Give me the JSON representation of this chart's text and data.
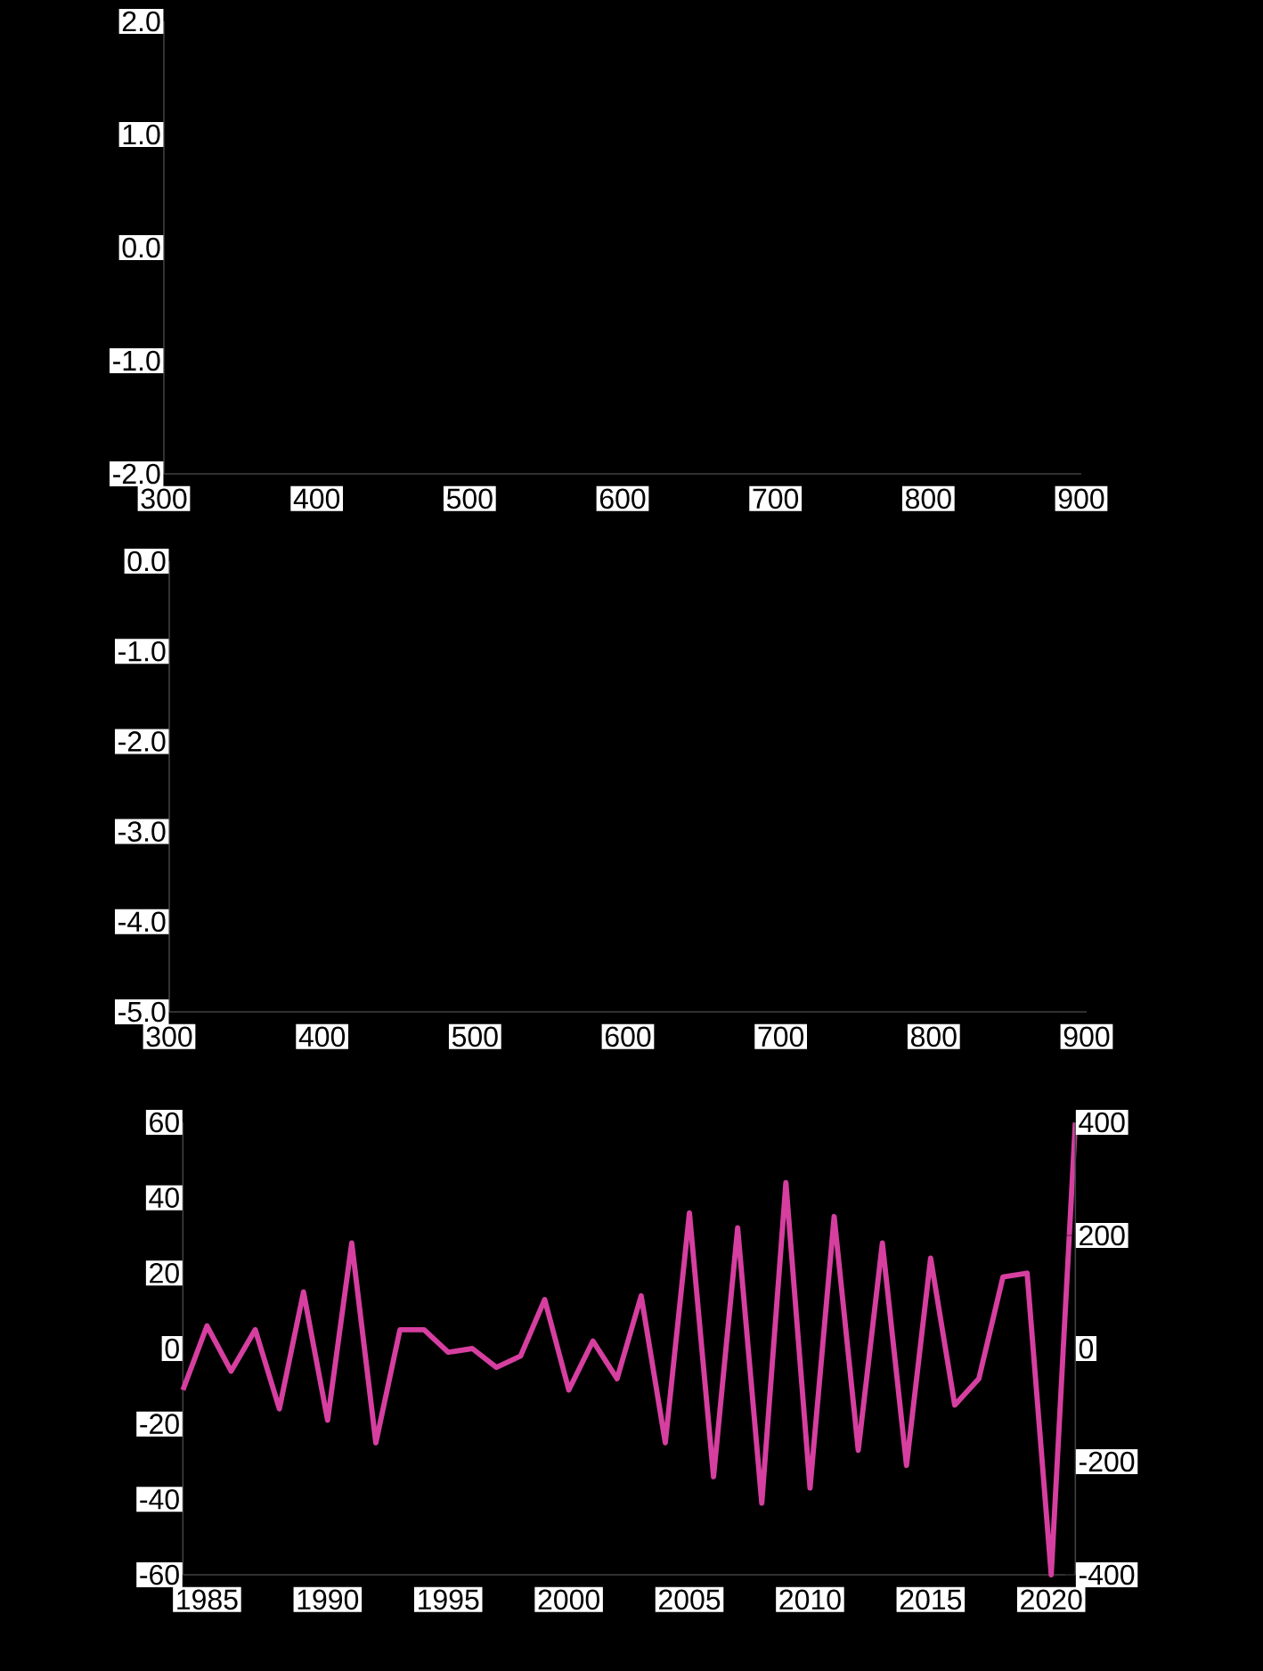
{
  "chart_data": [
    {
      "type": "line",
      "xlim": [
        300,
        900
      ],
      "xticks": [
        300,
        400,
        500,
        600,
        700,
        800,
        900
      ],
      "ylim": [
        -2,
        2
      ],
      "yticks": [
        {
          "value": 2,
          "label": "2.0"
        },
        {
          "value": 1,
          "label": "1.0"
        },
        {
          "value": 0,
          "label": "0.0"
        },
        {
          "value": -1,
          "label": "-1.0"
        },
        {
          "value": -2,
          "label": "-2.0"
        }
      ]
    },
    {
      "type": "line",
      "xlim": [
        300,
        900
      ],
      "xticks": [
        300,
        400,
        500,
        600,
        700,
        800,
        900
      ],
      "ylim": [
        -5,
        0
      ],
      "yticks": [
        {
          "value": 0,
          "label": "0.0"
        },
        {
          "value": -1,
          "label": "-1.0"
        },
        {
          "value": -2,
          "label": "-2.0"
        },
        {
          "value": -3,
          "label": "-3.0"
        },
        {
          "value": -4,
          "label": "-4.0"
        },
        {
          "value": -5,
          "label": "-5.0"
        }
      ]
    },
    {
      "type": "line",
      "xlim": [
        1984,
        2021
      ],
      "xticks": [
        1985,
        1990,
        1995,
        2000,
        2005,
        2010,
        2015,
        2020
      ],
      "ylim": [
        -60,
        60
      ],
      "yticks": [
        60,
        40,
        20,
        0,
        -20,
        -40,
        -60
      ],
      "y2lim": [
        -400,
        400
      ],
      "y2ticks": [
        400,
        200,
        0,
        -200,
        -400
      ],
      "x": [
        1984,
        1985,
        1986,
        1987,
        1988,
        1989,
        1990,
        1991,
        1992,
        1993,
        1994,
        1995,
        1996,
        1997,
        1998,
        1999,
        2000,
        2001,
        2002,
        2003,
        2004,
        2005,
        2006,
        2007,
        2008,
        2009,
        2010,
        2011,
        2012,
        2013,
        2014,
        2015,
        2016,
        2017,
        2018,
        2019,
        2020,
        2021
      ],
      "series": [
        {
          "color": "#d63fa0",
          "values": [
            -11,
            6,
            -6,
            5,
            -16,
            15,
            -19,
            28,
            -25,
            5,
            5,
            -1,
            0,
            -5,
            -2,
            13,
            -11,
            2,
            -8,
            14,
            -25,
            36,
            -34,
            32,
            -41,
            44,
            -37,
            35,
            -27,
            28,
            -31,
            24,
            -15,
            -8,
            19,
            20,
            -60,
            60
          ]
        }
      ]
    }
  ]
}
